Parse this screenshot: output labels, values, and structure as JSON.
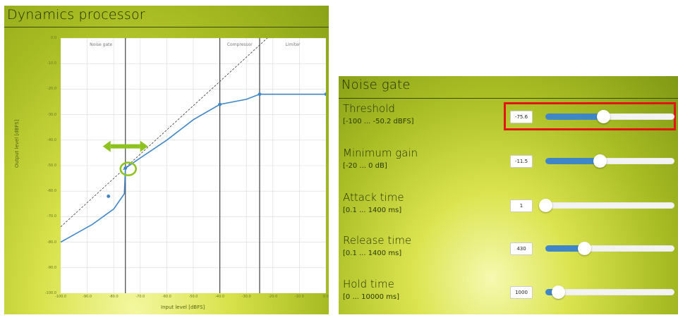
{
  "left_panel": {
    "title": "Dynamics processor",
    "chart_data": {
      "type": "line",
      "xlabel": "Input level [dBFS]",
      "ylabel": "Output level [dBFS]",
      "xlim": [
        -100,
        0
      ],
      "ylim": [
        -100,
        0
      ],
      "x_ticks": [
        "-100.0",
        "-90.0",
        "-80.0",
        "-70.0",
        "-60.0",
        "-50.0",
        "-40.0",
        "-30.0",
        "-20.0",
        "-10.0",
        "0.0"
      ],
      "y_ticks": [
        "0.0",
        "-10.0",
        "-20.0",
        "-30.0",
        "-40.0",
        "-50.0",
        "-60.0",
        "-70.0",
        "-80.0",
        "-90.0",
        "-100.0"
      ],
      "regions": [
        "Noise gate",
        "Compressor",
        "Limiter"
      ],
      "region_boundaries_x": [
        -75.6,
        -40,
        -25
      ],
      "curve": {
        "color": "#3f86c9",
        "x": [
          -100,
          -88,
          -80,
          -76,
          -75.6,
          -70,
          -60,
          -50,
          -40,
          -30,
          -25,
          -20,
          -10,
          0
        ],
        "y": [
          -80,
          -73,
          -67,
          -61,
          -51,
          -47,
          -40,
          -32,
          -26,
          -24,
          -22,
          -22,
          -22,
          -22
        ]
      },
      "reference_line": {
        "x": [
          -100,
          -20
        ],
        "y": [
          -74,
          2
        ]
      },
      "markers": [
        {
          "x": -82,
          "y": -62
        },
        {
          "x": -75.6,
          "y": -51
        },
        {
          "x": -40,
          "y": -26
        },
        {
          "x": -25,
          "y": -22
        },
        {
          "x": 0,
          "y": -22
        }
      ],
      "highlight_point": {
        "x": -75.6,
        "y": -51
      },
      "accent": "#8dc21f"
    }
  },
  "right_panel": {
    "title": "Noise gate",
    "params": [
      {
        "label": "Threshold",
        "range": "[-100 ... -50.2 dBFS]",
        "value": "-75.6",
        "fraction": 0.45
      },
      {
        "label": "Minimum gain",
        "range": "[-20 ... 0 dB]",
        "value": "-11.5",
        "fraction": 0.42
      },
      {
        "label": "Attack time",
        "range": "[0.1 ... 1400 ms]",
        "value": "1",
        "fraction": 0.0
      },
      {
        "label": "Release time",
        "range": "[0.1 ... 1400 ms]",
        "value": "430",
        "fraction": 0.3
      },
      {
        "label": "Hold time",
        "range": "[0 ... 10000 ms]",
        "value": "1000",
        "fraction": 0.1
      }
    ],
    "highlight_color": "#e01515",
    "slider_color": "#3f86c9"
  }
}
